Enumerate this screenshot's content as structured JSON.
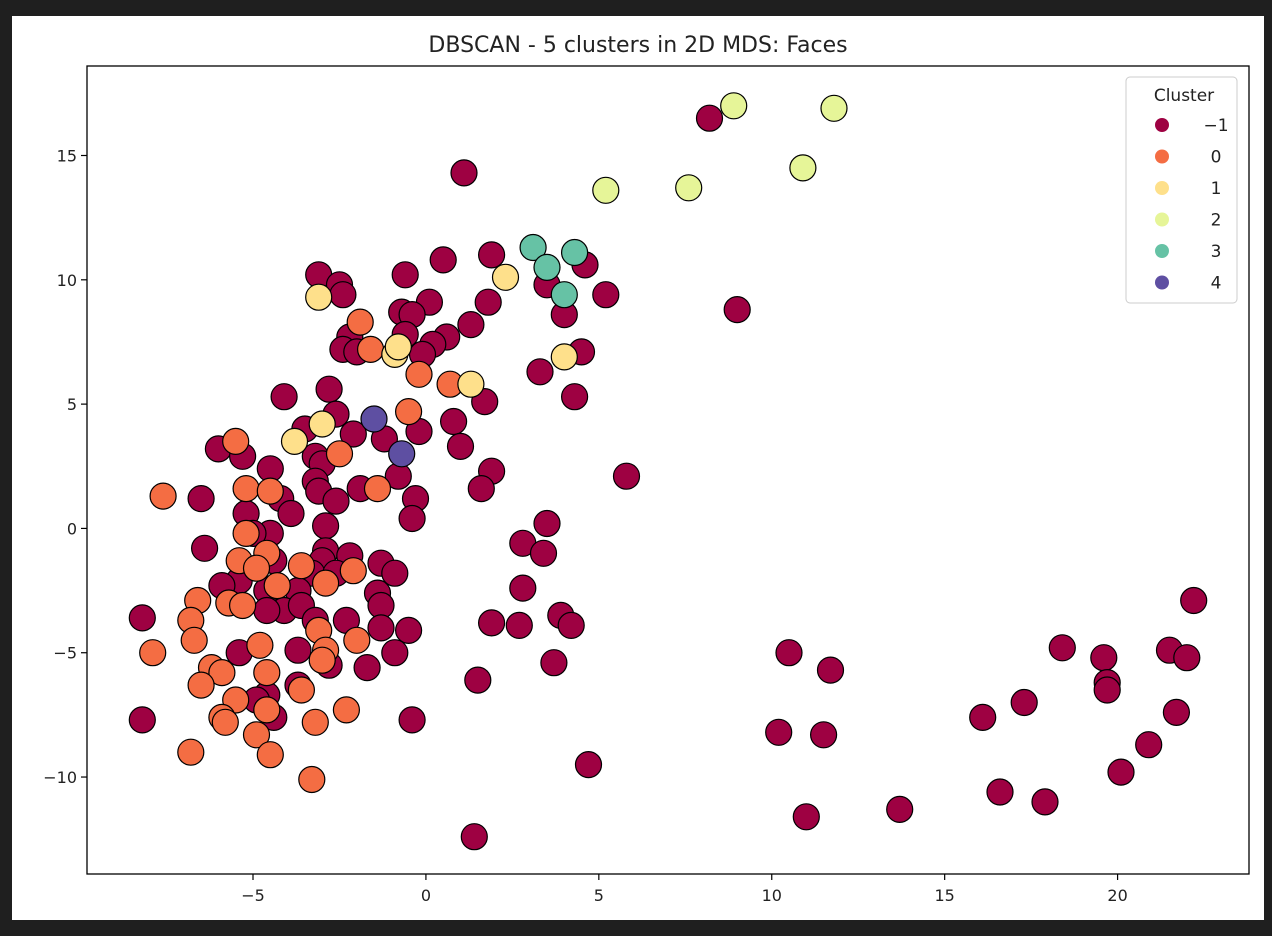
{
  "chart_data": {
    "type": "scatter",
    "title": "DBSCAN - 5 clusters in 2D MDS: Faces",
    "xlabel": "",
    "ylabel": "",
    "xlim": [
      -9.8,
      23.8
    ],
    "ylim": [
      -13.9,
      18.6
    ],
    "x_ticks": [
      -5,
      0,
      5,
      10,
      15,
      20
    ],
    "y_ticks": [
      -10,
      -5,
      0,
      5,
      10,
      15
    ],
    "x_tick_labels": [
      "−5",
      "0",
      "5",
      "10",
      "15",
      "20"
    ],
    "y_tick_labels": [
      "−10",
      "−5",
      "0",
      "5",
      "10",
      "15"
    ],
    "grid": false,
    "legend": {
      "title": "Cluster",
      "placement": "top-right"
    },
    "series": [
      {
        "name": "−1",
        "color": "#9e0142",
        "points": [
          [
            8.2,
            16.5
          ],
          [
            1.1,
            14.3
          ],
          [
            9.0,
            8.8
          ],
          [
            -3.1,
            10.2
          ],
          [
            -2.5,
            9.8
          ],
          [
            -2.4,
            9.4
          ],
          [
            -0.6,
            10.2
          ],
          [
            0.5,
            10.8
          ],
          [
            1.9,
            11.0
          ],
          [
            4.6,
            10.6
          ],
          [
            3.5,
            9.8
          ],
          [
            5.2,
            9.4
          ],
          [
            1.8,
            9.1
          ],
          [
            0.1,
            9.1
          ],
          [
            -0.7,
            8.7
          ],
          [
            -0.4,
            8.6
          ],
          [
            4.0,
            8.6
          ],
          [
            1.3,
            8.2
          ],
          [
            -2.2,
            7.7
          ],
          [
            -2.4,
            7.2
          ],
          [
            -2.0,
            7.1
          ],
          [
            -0.6,
            7.8
          ],
          [
            0.6,
            7.7
          ],
          [
            0.2,
            7.4
          ],
          [
            -0.1,
            7.0
          ],
          [
            4.5,
            7.1
          ],
          [
            3.3,
            6.3
          ],
          [
            -2.8,
            5.6
          ],
          [
            4.3,
            5.3
          ],
          [
            -4.1,
            5.3
          ],
          [
            1.7,
            5.1
          ],
          [
            -2.6,
            4.6
          ],
          [
            0.8,
            4.3
          ],
          [
            -3.5,
            4.0
          ],
          [
            -2.1,
            3.8
          ],
          [
            -1.2,
            3.6
          ],
          [
            -0.2,
            3.9
          ],
          [
            1.0,
            3.3
          ],
          [
            -6.0,
            3.2
          ],
          [
            -5.3,
            2.9
          ],
          [
            -3.2,
            2.9
          ],
          [
            -3.0,
            2.6
          ],
          [
            -4.5,
            2.4
          ],
          [
            1.9,
            2.3
          ],
          [
            5.8,
            2.1
          ],
          [
            -0.8,
            2.1
          ],
          [
            -3.2,
            1.9
          ],
          [
            -3.1,
            1.5
          ],
          [
            1.6,
            1.6
          ],
          [
            -2.6,
            1.1
          ],
          [
            -1.9,
            1.6
          ],
          [
            -4.2,
            1.2
          ],
          [
            -0.3,
            1.2
          ],
          [
            -6.5,
            1.2
          ],
          [
            -3.9,
            0.6
          ],
          [
            -5.2,
            0.6
          ],
          [
            -0.4,
            0.4
          ],
          [
            -2.9,
            0.1
          ],
          [
            3.5,
            0.2
          ],
          [
            -4.5,
            -0.2
          ],
          [
            -5.0,
            -0.2
          ],
          [
            2.8,
            -0.6
          ],
          [
            -6.4,
            -0.8
          ],
          [
            -2.9,
            -0.9
          ],
          [
            3.4,
            -1.0
          ],
          [
            -2.2,
            -1.1
          ],
          [
            -3.0,
            -1.3
          ],
          [
            -4.4,
            -1.3
          ],
          [
            -3.3,
            -1.8
          ],
          [
            -2.6,
            -1.8
          ],
          [
            -1.3,
            -1.4
          ],
          [
            -0.9,
            -1.8
          ],
          [
            -5.4,
            -2.1
          ],
          [
            -5.9,
            -2.3
          ],
          [
            -3.7,
            -2.5
          ],
          [
            2.8,
            -2.4
          ],
          [
            -1.4,
            -2.6
          ],
          [
            -4.6,
            -2.5
          ],
          [
            -4.1,
            -3.3
          ],
          [
            -4.6,
            -3.3
          ],
          [
            -3.6,
            -3.1
          ],
          [
            -1.3,
            -3.1
          ],
          [
            -1.3,
            -4.0
          ],
          [
            3.9,
            -3.5
          ],
          [
            -8.2,
            -3.6
          ],
          [
            -3.2,
            -3.7
          ],
          [
            -2.3,
            -3.7
          ],
          [
            2.7,
            -3.9
          ],
          [
            1.9,
            -3.8
          ],
          [
            4.2,
            -3.9
          ],
          [
            -0.5,
            -4.1
          ],
          [
            -3.7,
            -4.9
          ],
          [
            -0.9,
            -5.0
          ],
          [
            -5.4,
            -5.0
          ],
          [
            3.7,
            -5.4
          ],
          [
            -1.7,
            -5.6
          ],
          [
            -2.8,
            -5.5
          ],
          [
            1.5,
            -6.1
          ],
          [
            -3.7,
            -6.3
          ],
          [
            -4.6,
            -6.7
          ],
          [
            -4.9,
            -6.9
          ],
          [
            -4.4,
            -7.6
          ],
          [
            -0.4,
            -7.7
          ],
          [
            -8.2,
            -7.7
          ],
          [
            4.7,
            -9.5
          ],
          [
            1.4,
            -12.4
          ],
          [
            10.5,
            -5.0
          ],
          [
            11.7,
            -5.7
          ],
          [
            10.2,
            -8.2
          ],
          [
            11.5,
            -8.3
          ],
          [
            11.0,
            -11.6
          ],
          [
            13.7,
            -11.3
          ],
          [
            16.1,
            -7.6
          ],
          [
            17.3,
            -7.0
          ],
          [
            16.6,
            -10.6
          ],
          [
            17.9,
            -11.0
          ],
          [
            18.4,
            -4.8
          ],
          [
            19.6,
            -5.2
          ],
          [
            19.7,
            -6.2
          ],
          [
            19.7,
            -6.5
          ],
          [
            20.1,
            -9.8
          ],
          [
            20.9,
            -8.7
          ],
          [
            21.5,
            -4.9
          ],
          [
            21.7,
            -7.4
          ],
          [
            22.0,
            -5.2
          ],
          [
            22.2,
            -2.9
          ]
        ]
      },
      {
        "name": "0",
        "color": "#f46d43",
        "points": [
          [
            -1.9,
            8.3
          ],
          [
            -1.6,
            7.2
          ],
          [
            -0.2,
            6.2
          ],
          [
            0.7,
            5.8
          ],
          [
            -0.5,
            4.7
          ],
          [
            -2.5,
            3.0
          ],
          [
            -1.4,
            1.6
          ],
          [
            -5.5,
            3.5
          ],
          [
            -7.6,
            1.3
          ],
          [
            -5.2,
            1.6
          ],
          [
            -4.5,
            1.5
          ],
          [
            -5.2,
            -0.2
          ],
          [
            -4.6,
            -1.0
          ],
          [
            -5.4,
            -1.3
          ],
          [
            -4.9,
            -1.6
          ],
          [
            -3.6,
            -1.5
          ],
          [
            -4.3,
            -2.3
          ],
          [
            -2.9,
            -2.2
          ],
          [
            -2.1,
            -1.7
          ],
          [
            -6.6,
            -2.9
          ],
          [
            -5.7,
            -3.0
          ],
          [
            -5.3,
            -3.1
          ],
          [
            -6.8,
            -3.7
          ],
          [
            -3.1,
            -4.1
          ],
          [
            -7.9,
            -5.0
          ],
          [
            -6.7,
            -4.5
          ],
          [
            -4.8,
            -4.7
          ],
          [
            -2.9,
            -4.9
          ],
          [
            -2.0,
            -4.5
          ],
          [
            -6.2,
            -5.6
          ],
          [
            -5.9,
            -5.8
          ],
          [
            -4.6,
            -5.8
          ],
          [
            -3.0,
            -5.3
          ],
          [
            -6.5,
            -6.3
          ],
          [
            -5.5,
            -6.9
          ],
          [
            -3.6,
            -6.5
          ],
          [
            -5.9,
            -7.6
          ],
          [
            -5.8,
            -7.8
          ],
          [
            -4.6,
            -7.3
          ],
          [
            -3.2,
            -7.8
          ],
          [
            -2.3,
            -7.3
          ],
          [
            -6.8,
            -9.0
          ],
          [
            -4.9,
            -8.3
          ],
          [
            -4.5,
            -9.1
          ],
          [
            -3.3,
            -10.1
          ]
        ]
      },
      {
        "name": "1",
        "color": "#fee08b",
        "points": [
          [
            -3.1,
            9.3
          ],
          [
            2.3,
            10.1
          ],
          [
            -3.0,
            4.2
          ],
          [
            -3.8,
            3.5
          ],
          [
            4.0,
            6.9
          ],
          [
            1.3,
            5.8
          ],
          [
            -0.9,
            7.0
          ],
          [
            -0.8,
            7.3
          ]
        ]
      },
      {
        "name": "2",
        "color": "#e6f598",
        "points": [
          [
            8.9,
            17.0
          ],
          [
            11.8,
            16.9
          ],
          [
            10.9,
            14.5
          ],
          [
            7.6,
            13.7
          ],
          [
            5.2,
            13.6
          ]
        ]
      },
      {
        "name": "3",
        "color": "#66c2a5",
        "points": [
          [
            3.1,
            11.3
          ],
          [
            4.3,
            11.1
          ],
          [
            3.5,
            10.5
          ],
          [
            4.0,
            9.4
          ]
        ]
      },
      {
        "name": "4",
        "color": "#5e4fa2",
        "points": [
          [
            -1.5,
            4.4
          ],
          [
            -0.7,
            3.0
          ]
        ]
      }
    ]
  }
}
